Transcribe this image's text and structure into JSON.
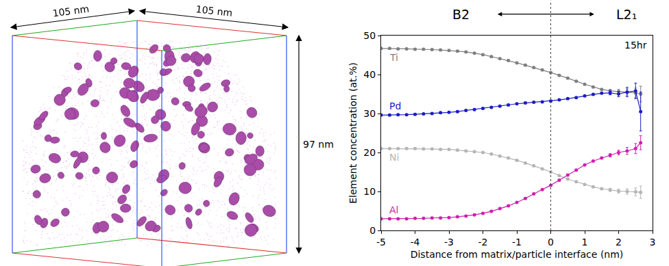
{
  "reconstruction": {
    "width_label": "105 nm",
    "depth_label": "105 nm",
    "height_label": "97 nm"
  },
  "chart_data": {
    "type": "line",
    "x_label": "Distance from matrix/particle interface (nm)",
    "y_label": "Element concentration (at.%)",
    "xlim": [
      -5,
      3
    ],
    "xticks": [
      -5,
      -4,
      -3,
      -2,
      -1,
      0,
      1,
      2,
      3
    ],
    "ylim": [
      0,
      50
    ],
    "yticks": [
      0,
      10,
      20,
      30,
      40,
      50
    ],
    "grid": false,
    "marker": "circle",
    "interface": 0,
    "annotations": [
      "B2",
      "L2₁",
      "15hr"
    ],
    "x": [
      -5,
      -4.75,
      -4.5,
      -4.25,
      -4,
      -3.75,
      -3.5,
      -3.25,
      -3,
      -2.75,
      -2.5,
      -2.25,
      -2,
      -1.75,
      -1.5,
      -1.25,
      -1,
      -0.75,
      -0.5,
      -0.25,
      0,
      0.25,
      0.5,
      0.75,
      1,
      1.25,
      1.5,
      1.75,
      2,
      2.25,
      2.5,
      2.65
    ],
    "series": [
      {
        "name": "Ti",
        "color": "#7f7f7f",
        "values": [
          46.7,
          46.7,
          46.6,
          46.6,
          46.5,
          46.5,
          46.4,
          46.3,
          46.2,
          46.0,
          45.8,
          45.5,
          45.1,
          44.6,
          44.1,
          43.6,
          43.0,
          42.4,
          41.8,
          41.2,
          40.5,
          39.8,
          39.1,
          38.3,
          37.5,
          36.8,
          36.2,
          35.8,
          35.6,
          35.5,
          35.3,
          35.0
        ],
        "errors": [
          0.2,
          0.2,
          0.2,
          0.2,
          0.2,
          0.2,
          0.2,
          0.2,
          0.2,
          0.2,
          0.2,
          0.2,
          0.2,
          0.2,
          0.2,
          0.2,
          0.2,
          0.2,
          0.2,
          0.2,
          0.2,
          0.2,
          0.2,
          0.2,
          0.2,
          0.2,
          0.2,
          0.4,
          0.6,
          0.8,
          1.2,
          2
        ]
      },
      {
        "name": "Pd",
        "color": "#1c1cc8",
        "values": [
          29.6,
          29.6,
          29.7,
          29.7,
          29.8,
          29.9,
          30.0,
          30.2,
          30.3,
          30.5,
          30.8,
          31.0,
          31.3,
          31.6,
          31.9,
          32.2,
          32.5,
          32.7,
          32.9,
          33.0,
          33.2,
          33.5,
          33.8,
          34.1,
          34.5,
          34.9,
          35.2,
          35.3,
          35.0,
          35.5,
          35.8,
          30.5
        ],
        "errors": [
          0.2,
          0.2,
          0.2,
          0.2,
          0.2,
          0.2,
          0.2,
          0.2,
          0.2,
          0.2,
          0.2,
          0.2,
          0.2,
          0.2,
          0.2,
          0.2,
          0.2,
          0.2,
          0.2,
          0.2,
          0.2,
          0.2,
          0.2,
          0.2,
          0.2,
          0.2,
          0.2,
          0.5,
          0.7,
          1.2,
          2,
          5
        ]
      },
      {
        "name": "Ni",
        "color": "#b5b5b5",
        "values": [
          21.0,
          21.0,
          21.0,
          21.0,
          21.0,
          20.9,
          20.9,
          20.8,
          20.8,
          20.6,
          20.4,
          20.2,
          20.0,
          19.6,
          19.1,
          18.6,
          18.0,
          17.3,
          16.6,
          15.8,
          15.0,
          14.1,
          13.2,
          12.5,
          11.8,
          11.2,
          10.7,
          10.4,
          10.1,
          10.0,
          9.9,
          9.8
        ],
        "errors": [
          0.2,
          0.2,
          0.2,
          0.2,
          0.2,
          0.2,
          0.2,
          0.2,
          0.2,
          0.2,
          0.2,
          0.2,
          0.2,
          0.2,
          0.2,
          0.2,
          0.2,
          0.2,
          0.2,
          0.2,
          0.2,
          0.2,
          0.2,
          0.2,
          0.2,
          0.2,
          0.2,
          0.4,
          0.5,
          0.7,
          1,
          1.6
        ]
      },
      {
        "name": "Al",
        "color": "#d01fb0",
        "values": [
          3.0,
          3.0,
          3.0,
          3.0,
          3.1,
          3.1,
          3.2,
          3.2,
          3.3,
          3.5,
          3.7,
          4.0,
          4.4,
          4.9,
          5.6,
          6.3,
          7.2,
          8.2,
          9.4,
          10.5,
          11.6,
          12.9,
          14.2,
          15.5,
          16.8,
          17.8,
          18.6,
          19.3,
          20.0,
          20.4,
          21.0,
          22.5
        ],
        "errors": [
          0.2,
          0.2,
          0.2,
          0.2,
          0.2,
          0.2,
          0.2,
          0.2,
          0.2,
          0.2,
          0.2,
          0.2,
          0.2,
          0.2,
          0.2,
          0.2,
          0.2,
          0.2,
          0.2,
          0.2,
          0.2,
          0.2,
          0.2,
          0.2,
          0.2,
          0.2,
          0.2,
          0.4,
          0.6,
          0.9,
          1.3,
          1.8
        ]
      }
    ]
  }
}
